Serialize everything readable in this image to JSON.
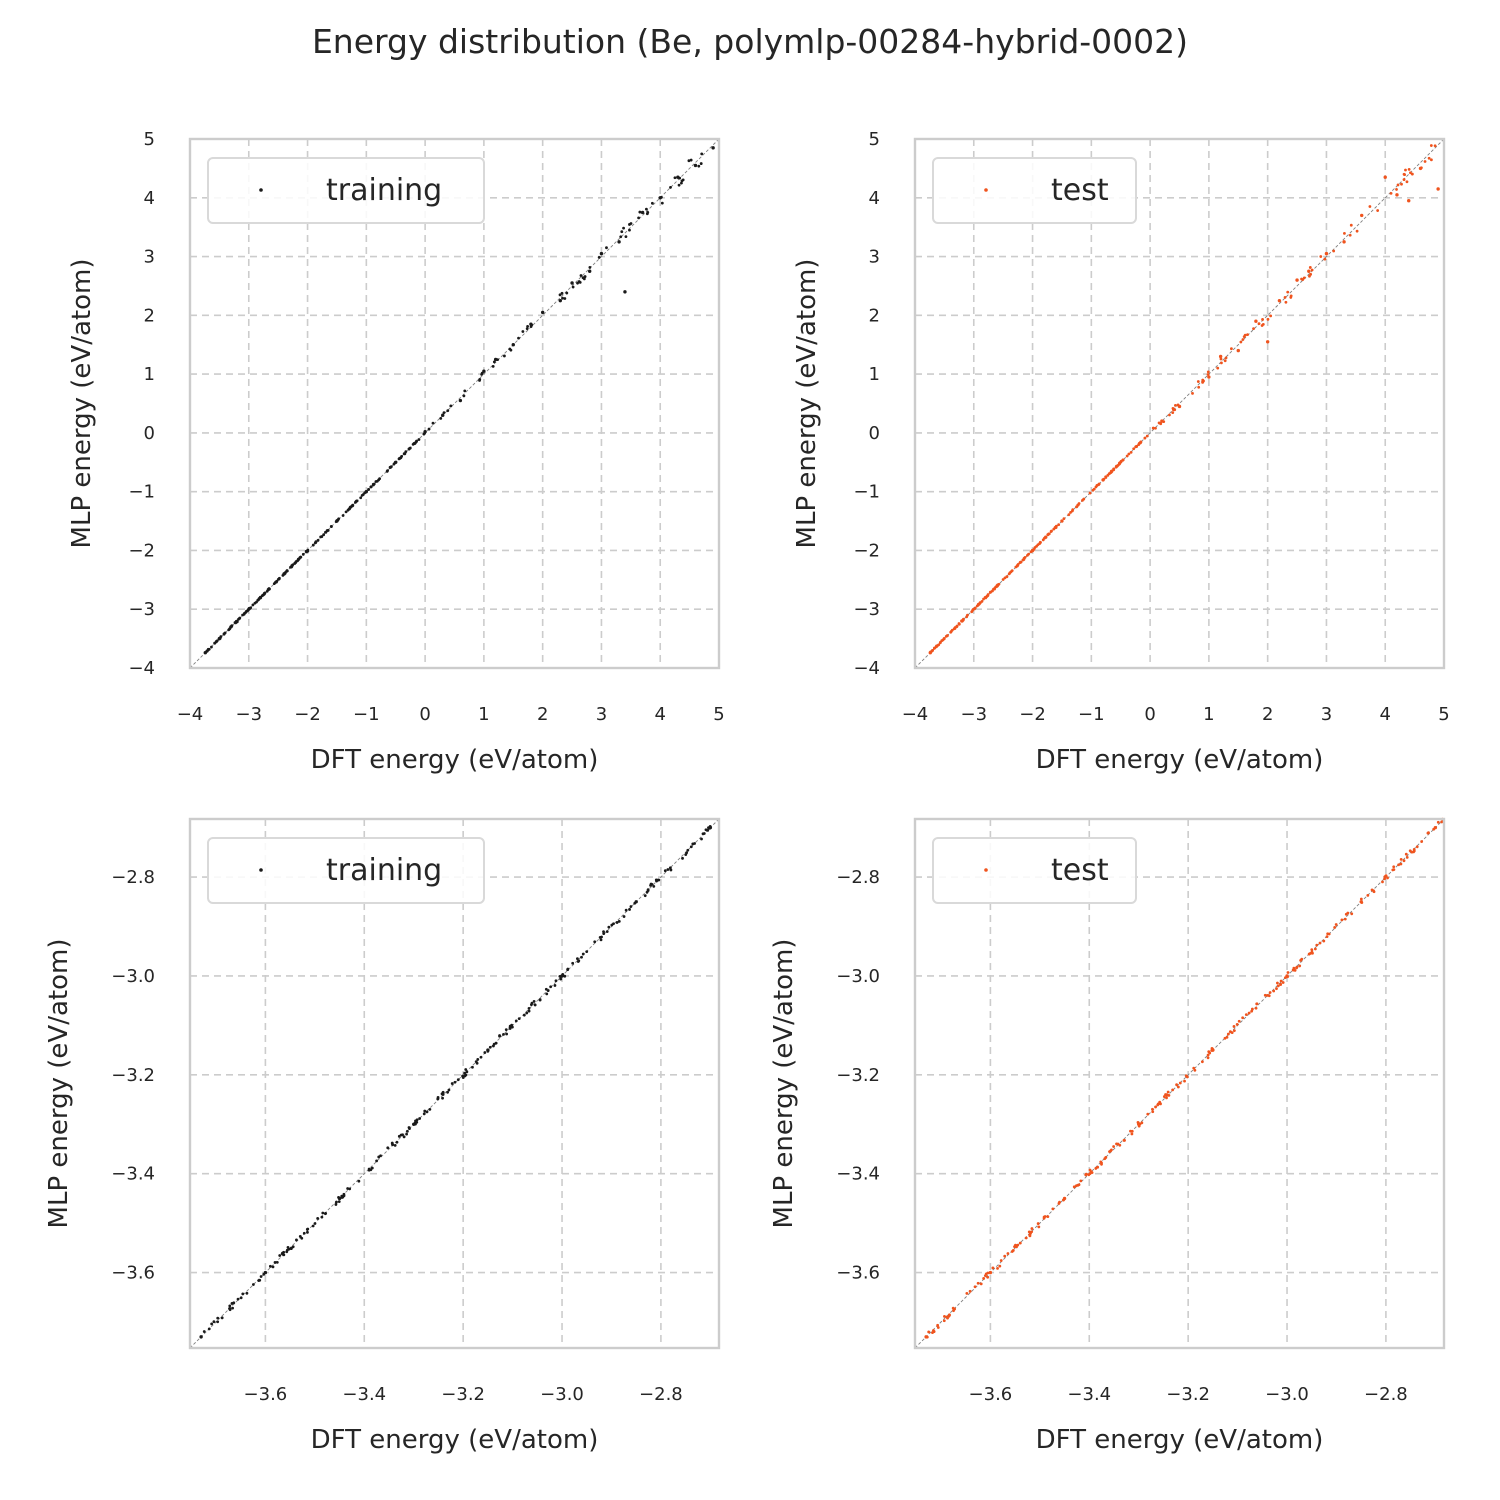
{
  "title": "Energy distribution (Be, polymlp-00284-hybrid-0002)",
  "colors": {
    "training": "#1a1a1a",
    "test": "#f0541e",
    "grid": "#cccccc",
    "spine": "#cccccc",
    "diagonal": "#808080"
  },
  "chart_data": [
    {
      "type": "scatter",
      "position": "top-left",
      "xlabel": "DFT energy (eV/atom)",
      "ylabel": "MLP energy (eV/atom)",
      "xlim": [
        -4,
        5
      ],
      "ylim": [
        -4,
        5
      ],
      "xticks": [
        -4,
        -3,
        -2,
        -1,
        0,
        1,
        2,
        3,
        4,
        5
      ],
      "xtick_labels": [
        "−4",
        "−3",
        "−2",
        "−1",
        "0",
        "1",
        "2",
        "3",
        "4",
        "5"
      ],
      "yticks": [
        -4,
        -3,
        -2,
        -1,
        0,
        1,
        2,
        3,
        4,
        5
      ],
      "ytick_labels": [
        "−4",
        "−3",
        "−2",
        "−1",
        "0",
        "1",
        "2",
        "3",
        "4",
        "5"
      ],
      "legend": "training",
      "legend_loc": "upper-left",
      "series_color": "training",
      "points": [
        [
          -3.74,
          -3.74
        ],
        [
          -3.5,
          -3.5
        ],
        [
          -3.2,
          -3.21
        ],
        [
          -2.8,
          -2.8
        ],
        [
          -2.4,
          -2.4
        ],
        [
          -2.0,
          -2.01
        ],
        [
          -1.5,
          -1.5
        ],
        [
          -1.0,
          -1.0
        ],
        [
          -0.5,
          -0.5
        ],
        [
          0.0,
          0.02
        ],
        [
          0.3,
          0.3
        ],
        [
          0.6,
          0.55
        ],
        [
          1.0,
          1.05
        ],
        [
          1.2,
          1.25
        ],
        [
          1.5,
          1.5
        ],
        [
          1.8,
          1.85
        ],
        [
          2.0,
          2.05
        ],
        [
          2.3,
          2.25
        ],
        [
          2.5,
          2.55
        ],
        [
          2.8,
          2.75
        ],
        [
          3.0,
          3.05
        ],
        [
          3.3,
          3.25
        ],
        [
          3.4,
          2.4
        ],
        [
          3.7,
          3.75
        ],
        [
          4.0,
          4.0
        ],
        [
          4.3,
          4.35
        ],
        [
          4.6,
          4.55
        ],
        [
          4.9,
          4.85
        ]
      ]
    },
    {
      "type": "scatter",
      "position": "top-right",
      "xlabel": "DFT energy (eV/atom)",
      "ylabel": "MLP energy (eV/atom)",
      "xlim": [
        -4,
        5
      ],
      "ylim": [
        -4,
        5
      ],
      "xticks": [
        -4,
        -3,
        -2,
        -1,
        0,
        1,
        2,
        3,
        4,
        5
      ],
      "xtick_labels": [
        "−4",
        "−3",
        "−2",
        "−1",
        "0",
        "1",
        "2",
        "3",
        "4",
        "5"
      ],
      "yticks": [
        -4,
        -3,
        -2,
        -1,
        0,
        1,
        2,
        3,
        4,
        5
      ],
      "ytick_labels": [
        "−4",
        "−3",
        "−2",
        "−1",
        "0",
        "1",
        "2",
        "3",
        "4",
        "5"
      ],
      "legend": "test",
      "legend_loc": "upper-left",
      "series_color": "test",
      "points": [
        [
          -3.74,
          -3.74
        ],
        [
          -3.2,
          -3.2
        ],
        [
          -2.6,
          -2.6
        ],
        [
          -2.0,
          -2.0
        ],
        [
          -1.5,
          -1.5
        ],
        [
          -0.8,
          -0.8
        ],
        [
          0.2,
          0.2
        ],
        [
          0.5,
          0.45
        ],
        [
          1.0,
          0.95
        ],
        [
          1.2,
          1.3
        ],
        [
          1.5,
          1.4
        ],
        [
          1.8,
          1.9
        ],
        [
          2.0,
          1.55
        ],
        [
          2.2,
          2.25
        ],
        [
          2.5,
          2.6
        ],
        [
          2.7,
          2.75
        ],
        [
          3.0,
          3.05
        ],
        [
          3.3,
          3.25
        ],
        [
          3.6,
          3.7
        ],
        [
          4.0,
          4.35
        ],
        [
          4.2,
          4.05
        ],
        [
          4.4,
          3.95
        ],
        [
          4.6,
          4.5
        ],
        [
          4.9,
          4.15
        ]
      ]
    },
    {
      "type": "scatter",
      "position": "bottom-left",
      "xlabel": "DFT energy (eV/atom)",
      "ylabel": "MLP energy (eV/atom)",
      "xlim": [
        -3.7525,
        -2.6825
      ],
      "ylim": [
        -3.7525,
        -2.6825
      ],
      "xticks": [
        -3.6,
        -3.4,
        -3.2,
        -3.0,
        -2.8
      ],
      "xtick_labels": [
        "−3.6",
        "−3.4",
        "−3.2",
        "−3.0",
        "−2.8"
      ],
      "yticks": [
        -3.6,
        -3.4,
        -3.2,
        -3.0,
        -2.8
      ],
      "ytick_labels": [
        "−3.6",
        "−3.4",
        "−3.2",
        "−3.0",
        "−2.8"
      ],
      "legend": "training",
      "legend_loc": "upper-left",
      "series_color": "training",
      "points": [
        [
          -3.73,
          -3.73
        ],
        [
          -3.6,
          -3.6
        ],
        [
          -3.45,
          -3.45
        ],
        [
          -3.3,
          -3.3
        ],
        [
          -3.15,
          -3.15
        ],
        [
          -3.0,
          -3.0
        ],
        [
          -2.85,
          -2.85
        ],
        [
          -2.7,
          -2.7
        ]
      ]
    },
    {
      "type": "scatter",
      "position": "bottom-right",
      "xlabel": "DFT energy (eV/atom)",
      "ylabel": "MLP energy (eV/atom)",
      "xlim": [
        -3.7525,
        -2.6825
      ],
      "ylim": [
        -3.7525,
        -2.6825
      ],
      "xticks": [
        -3.6,
        -3.4,
        -3.2,
        -3.0,
        -2.8
      ],
      "xtick_labels": [
        "−3.6",
        "−3.4",
        "−3.2",
        "−3.0",
        "−2.8"
      ],
      "yticks": [
        -3.6,
        -3.4,
        -3.2,
        -3.0,
        -2.8
      ],
      "ytick_labels": [
        "−3.6",
        "−3.4",
        "−3.2",
        "−3.0",
        "−2.8"
      ],
      "legend": "test",
      "legend_loc": "upper-left",
      "series_color": "test",
      "points": [
        [
          -3.73,
          -3.73
        ],
        [
          -3.6,
          -3.6
        ],
        [
          -3.45,
          -3.45
        ],
        [
          -3.3,
          -3.3
        ],
        [
          -3.15,
          -3.15
        ],
        [
          -3.0,
          -3.0
        ],
        [
          -2.85,
          -2.85
        ],
        [
          -2.7,
          -2.7
        ]
      ]
    }
  ]
}
